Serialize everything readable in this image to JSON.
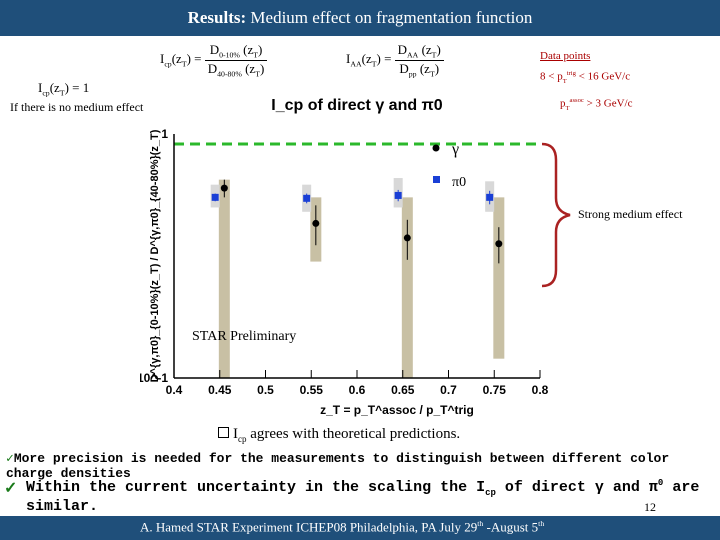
{
  "title": {
    "bold": "Results:",
    "rest": "Medium effect on fragmentation function"
  },
  "equations": {
    "icp_lhs": "I",
    "icp_sub": "cp",
    "icp_arg": "(z",
    "icp_argsub": "T",
    "icp_argend": ") =",
    "icp_num_main": "D",
    "icp_num_sub": "0-10%",
    "icp_num_arg": "(z",
    "icp_num_argsub": "T",
    "icp_num_end": ")",
    "icp_den_main": "D",
    "icp_den_sub": "40-80%",
    "icp_den_arg": "(z",
    "icp_den_argsub": "T",
    "icp_den_end": ")",
    "iaa_lhs": "I",
    "iaa_sub": "AA",
    "iaa_arg": "(z",
    "iaa_argsub": "T",
    "iaa_argend": ") =",
    "iaa_num_main": "D",
    "iaa_num_sub": "AA",
    "iaa_num_arg": "(z",
    "iaa_num_argsub": "T",
    "iaa_num_end": ")",
    "iaa_den_main": "D",
    "iaa_den_sub": "pp",
    "iaa_den_arg": "(z",
    "iaa_den_argsub": "T",
    "iaa_den_end": ")",
    "icp_one_lhs": "I",
    "icp_one_sub": "cp",
    "icp_one_arg": "(z",
    "icp_one_argsub": "T",
    "icp_one_end": ") = 1"
  },
  "note": "If there is no medium effect",
  "data_points": {
    "label": "Data points",
    "range_lo": "8 <",
    "range_var": "p",
    "range_varsub": "T",
    "range_varsup": "trig",
    "range_hi": "< 16 GeV/c",
    "assoc_var": "p",
    "assoc_varsub": "T",
    "assoc_varsup": "assoc",
    "assoc_hi": "> 3 GeV/c"
  },
  "strong_label": "Strong medium effect",
  "chart_data": {
    "type": "scatter",
    "title": "I_cp of direct γ and π0",
    "xlabel": "z_T = p_T^assoc / p_T^trig",
    "ylabel": "D^{γ,π0}_{0-10%}(z_T) / D^{γ,π0}_{40-80%}(z_T)",
    "xlim": [
      0.4,
      0.8
    ],
    "ylim": [
      0.1,
      1
    ],
    "yscale": "log",
    "xticks": [
      "0.4",
      "0.45",
      "0.5",
      "0.55",
      "0.6",
      "0.65",
      "0.7",
      "0.75",
      "0.8"
    ],
    "yticks": [
      "10^-1",
      "1"
    ],
    "reference_line": 1,
    "annotation": "STAR Preliminary",
    "legend": [
      {
        "name": "γ",
        "color": "#000000",
        "marker": "circle"
      },
      {
        "name": "π0",
        "color": "#1a3fd6",
        "marker": "square"
      }
    ],
    "series": [
      {
        "name": "γ",
        "color": "#000000",
        "points": [
          {
            "x": 0.455,
            "y": 0.6,
            "err": 0.05,
            "sys_lo": 0.1,
            "sys_hi": 0.65
          },
          {
            "x": 0.555,
            "y": 0.43,
            "err": 0.08,
            "sys_lo": 0.3,
            "sys_hi": 0.55
          },
          {
            "x": 0.655,
            "y": 0.375,
            "err": 0.07,
            "sys_lo": 0.1,
            "sys_hi": 0.55
          },
          {
            "x": 0.755,
            "y": 0.355,
            "err": 0.06,
            "sys_lo": 0.12,
            "sys_hi": 0.55
          }
        ]
      },
      {
        "name": "π0",
        "color": "#1a3fd6",
        "points": [
          {
            "x": 0.445,
            "y": 0.55,
            "err": 0.02,
            "sys_lo": 0.5,
            "sys_hi": 0.62
          },
          {
            "x": 0.545,
            "y": 0.545,
            "err": 0.025,
            "sys_lo": 0.48,
            "sys_hi": 0.62
          },
          {
            "x": 0.645,
            "y": 0.56,
            "err": 0.03,
            "sys_lo": 0.5,
            "sys_hi": 0.66
          },
          {
            "x": 0.745,
            "y": 0.55,
            "err": 0.035,
            "sys_lo": 0.48,
            "sys_hi": 0.64
          }
        ]
      }
    ]
  },
  "bullets": {
    "b1_pre": "I",
    "b1_sub": "cp",
    "b1_rest": " agrees with theoretical predictions.",
    "b2": "More precision is needed for the measurements to distinguish between different color",
    "b3": "charge densities",
    "b4_pre": "Within the current uncertainty in the scaling the I",
    "b4_sub": "cp",
    "b4_mid": " of direct γ and π",
    "b4_sup": "0",
    "b4_end": " are similar."
  },
  "page_number": "12",
  "footer": {
    "pre": "A. Hamed STAR Experiment ICHEP08 Philadelphia, PA July 29",
    "sup1": "th",
    "mid": " -August 5",
    "sup2": "th"
  },
  "colors": {
    "title_bg": "#1f4f7a",
    "reference": "#2bb82b",
    "band": "#c8c0a4",
    "brace": "#aa2222",
    "pi0": "#1a3fd6"
  }
}
